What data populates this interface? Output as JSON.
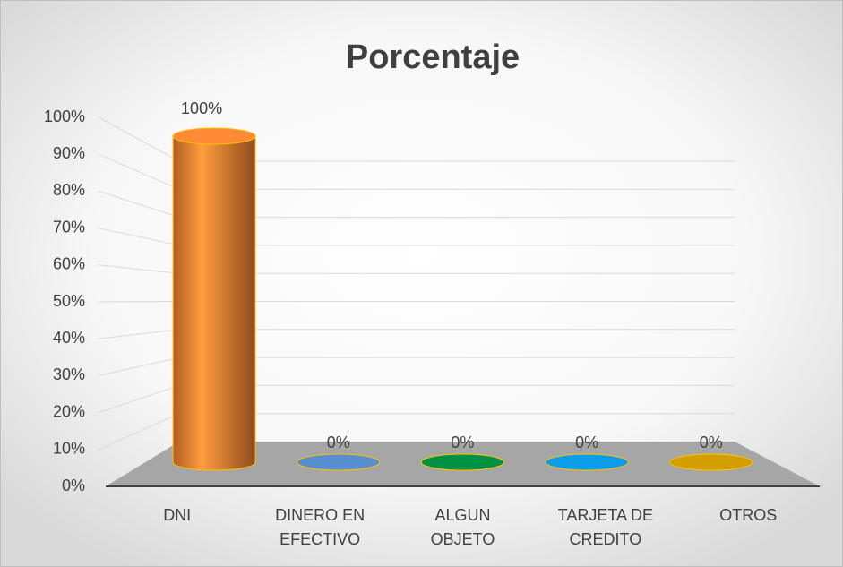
{
  "chart_data": {
    "type": "bar3d",
    "title": "Porcentaje",
    "categories": [
      "DNI",
      "DINERO EN EFECTIVO",
      "ALGUN OBJETO",
      "TARJETA DE CREDITO",
      "OTROS"
    ],
    "values": [
      100,
      0,
      0,
      0,
      0
    ],
    "value_labels": [
      "100%",
      "0%",
      "0%",
      "0%",
      "0%"
    ],
    "colors": [
      "#ed7d31",
      "#4f81bd",
      "#00843d",
      "#0a8fd6",
      "#bf9000"
    ],
    "ylim": [
      0,
      100
    ],
    "yticks": [
      {
        "value": 0,
        "label": "0%"
      },
      {
        "value": 10,
        "label": "10%"
      },
      {
        "value": 20,
        "label": "20%"
      },
      {
        "value": 30,
        "label": "30%"
      },
      {
        "value": 40,
        "label": "40%"
      },
      {
        "value": 50,
        "label": "50%"
      },
      {
        "value": 60,
        "label": "60%"
      },
      {
        "value": 70,
        "label": "70%"
      },
      {
        "value": 80,
        "label": "80%"
      },
      {
        "value": 90,
        "label": "90%"
      },
      {
        "value": 100,
        "label": "100%"
      }
    ],
    "grid": true
  }
}
